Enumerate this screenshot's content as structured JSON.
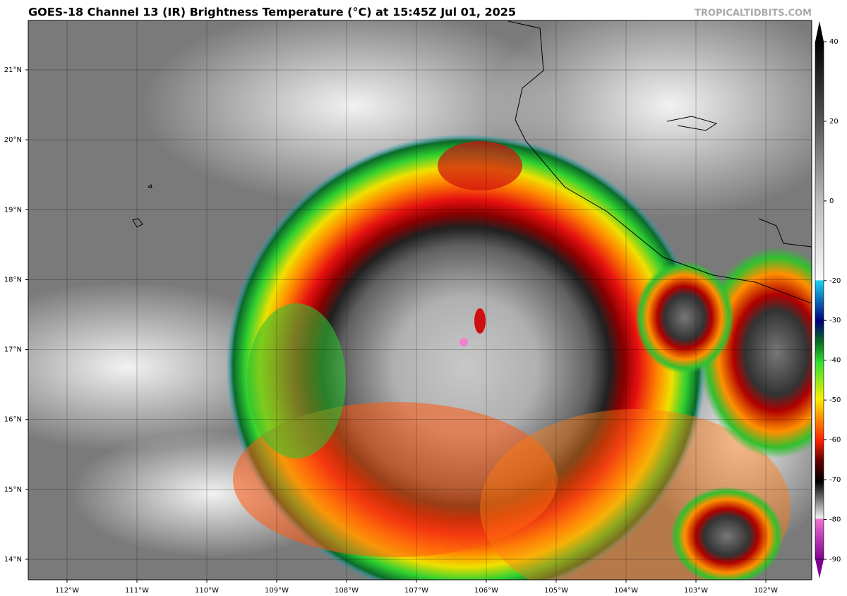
{
  "title": "GOES-18 Channel 13 (IR) Brightness Temperature (°C) at 15:45Z Jul 01, 2025",
  "watermark": "TROPICALTIDBITS.COM",
  "map": {
    "lon_labels": [
      "112°W",
      "111°W",
      "110°W",
      "109°W",
      "108°W",
      "107°W",
      "106°W",
      "105°W",
      "104°W",
      "103°W",
      "102°W"
    ],
    "lat_labels": [
      "21°N",
      "20°N",
      "19°N",
      "18°N",
      "17°N",
      "16°N",
      "15°N",
      "14°N"
    ]
  },
  "colorbar": {
    "lim": [
      -90,
      40
    ],
    "ticks": [
      40,
      20,
      0,
      -20,
      -30,
      -40,
      -50,
      -60,
      -70,
      -80,
      -90
    ]
  }
}
